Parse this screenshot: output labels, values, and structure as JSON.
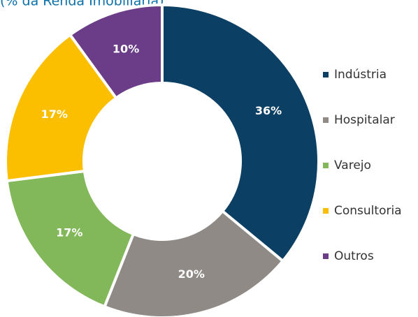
{
  "chart_data": {
    "type": "donut",
    "subtitle": "(% da Renda Imobiliária)",
    "categories": [
      "Indústria",
      "Hospitalar",
      "Varejo",
      "Consultoria",
      "Outros"
    ],
    "values": [
      36,
      20,
      17,
      17,
      10
    ],
    "value_labels": [
      "36%",
      "20%",
      "17%",
      "17%",
      "10%"
    ],
    "colors": [
      "#0b3f63",
      "#8f8a85",
      "#82b85a",
      "#fbbf00",
      "#6b3c87"
    ],
    "legend": "right"
  }
}
